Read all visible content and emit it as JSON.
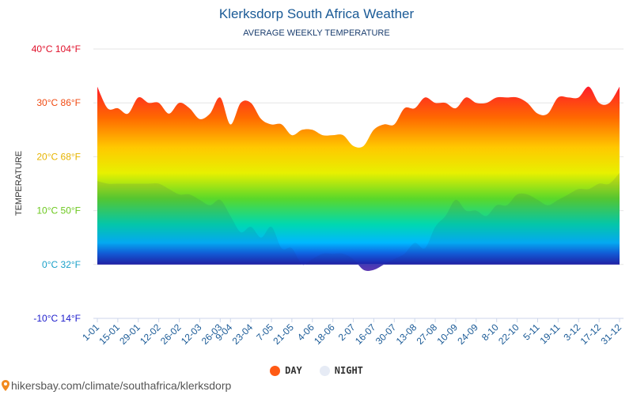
{
  "header": {
    "title": "Klerksdorp South Africa Weather",
    "subtitle": "AVERAGE WEEKLY TEMPERATURE",
    "ylabel": "TEMPERATURE"
  },
  "legend": {
    "day_label": "DAY",
    "night_label": "NIGHT",
    "day_color": "#ff5a14",
    "night_color": "#e6ebf5"
  },
  "footer": {
    "url": "hikersbay.com/climate/southafrica/klerksdorp"
  },
  "chart_data": {
    "type": "area",
    "title": "Klerksdorp South Africa Weather",
    "subtitle": "AVERAGE WEEKLY TEMPERATURE",
    "ylabel": "TEMPERATURE",
    "xlabel": "",
    "ylim": [
      -10,
      40
    ],
    "y_ticks": [
      {
        "value": 40,
        "label": "40°C 104°F",
        "color": "#e0102a"
      },
      {
        "value": 30,
        "label": "30°C 86°F",
        "color": "#f04a12"
      },
      {
        "value": 20,
        "label": "20°C 68°F",
        "color": "#e6b400"
      },
      {
        "value": 10,
        "label": "10°C 50°F",
        "color": "#6cc81e"
      },
      {
        "value": 0,
        "label": "0°C 32°F",
        "color": "#1aa0c8"
      },
      {
        "value": -10,
        "label": "-10°C 14°F",
        "color": "#1c1ccc"
      }
    ],
    "x_ticks": [
      {
        "index": 0,
        "label": "1-01"
      },
      {
        "index": 2,
        "label": "15-01"
      },
      {
        "index": 4,
        "label": "29-01"
      },
      {
        "index": 6,
        "label": "12-02"
      },
      {
        "index": 8,
        "label": "26-02"
      },
      {
        "index": 10,
        "label": "12-03"
      },
      {
        "index": 12,
        "label": "26-03"
      },
      {
        "index": 13,
        "label": "9-04"
      },
      {
        "index": 15,
        "label": "23-04"
      },
      {
        "index": 17,
        "label": "7-05"
      },
      {
        "index": 19,
        "label": "21-05"
      },
      {
        "index": 21,
        "label": "4-06"
      },
      {
        "index": 23,
        "label": "18-06"
      },
      {
        "index": 25,
        "label": "2-07"
      },
      {
        "index": 27,
        "label": "16-07"
      },
      {
        "index": 29,
        "label": "30-07"
      },
      {
        "index": 31,
        "label": "13-08"
      },
      {
        "index": 33,
        "label": "27-08"
      },
      {
        "index": 35,
        "label": "10-09"
      },
      {
        "index": 37,
        "label": "24-09"
      },
      {
        "index": 39,
        "label": "8-10"
      },
      {
        "index": 41,
        "label": "22-10"
      },
      {
        "index": 43,
        "label": "5-11"
      },
      {
        "index": 45,
        "label": "19-11"
      },
      {
        "index": 47,
        "label": "3-12"
      },
      {
        "index": 49,
        "label": "17-12"
      },
      {
        "index": 51,
        "label": "31-12"
      }
    ],
    "series": [
      {
        "name": "DAY",
        "values": [
          33,
          29,
          29,
          28,
          31,
          30,
          30,
          28,
          30,
          29,
          27,
          28,
          31,
          26,
          30,
          30,
          27,
          26,
          26,
          24,
          25,
          25,
          24,
          24,
          24,
          22,
          22,
          25,
          26,
          26,
          29,
          29,
          31,
          30,
          30,
          29,
          31,
          30,
          30,
          31,
          31,
          31,
          30,
          28,
          28,
          31,
          31,
          31,
          33,
          30,
          30,
          33
        ]
      },
      {
        "name": "NIGHT",
        "values": [
          15.5,
          15,
          15,
          15,
          15,
          15,
          15,
          14,
          13,
          13,
          12,
          11,
          12,
          9,
          6,
          7,
          5,
          7,
          3,
          3,
          0,
          1,
          2,
          2,
          2,
          1,
          -1,
          -1,
          0,
          1,
          2,
          4,
          3,
          7,
          9,
          12,
          10,
          10,
          9,
          11,
          11,
          13,
          13,
          12,
          11,
          12,
          13,
          14,
          14,
          15,
          15,
          17
        ]
      }
    ]
  }
}
